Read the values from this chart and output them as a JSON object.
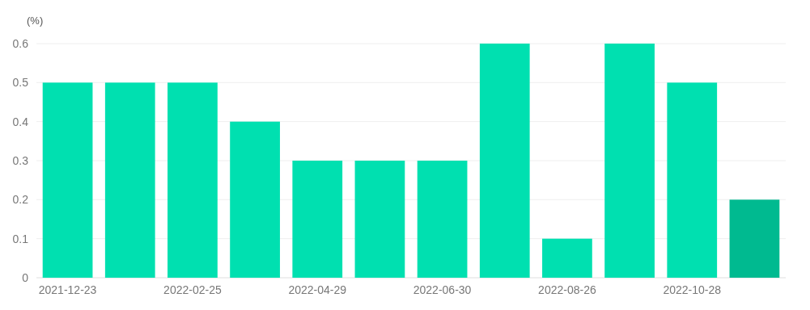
{
  "chart_data": {
    "type": "bar",
    "ylabel": "(%)",
    "categories": [
      "2021-12-23",
      null,
      "2022-02-25",
      null,
      "2022-04-29",
      null,
      "2022-06-30",
      null,
      "2022-08-26",
      null,
      "2022-10-28",
      null
    ],
    "values": [
      0.5,
      0.5,
      0.5,
      0.4,
      0.3,
      0.3,
      0.3,
      0.6,
      0.1,
      0.6,
      0.5,
      0.2
    ],
    "colors": [
      "#00e0b0",
      "#00e0b0",
      "#00e0b0",
      "#00e0b0",
      "#00e0b0",
      "#00e0b0",
      "#00e0b0",
      "#00e0b0",
      "#00e0b0",
      "#00e0b0",
      "#00e0b0",
      "#00ba90"
    ],
    "ylim": [
      0,
      0.6
    ],
    "yticks": [
      0,
      0.1,
      0.2,
      0.3,
      0.4,
      0.5,
      0.6
    ],
    "grid": "y"
  }
}
